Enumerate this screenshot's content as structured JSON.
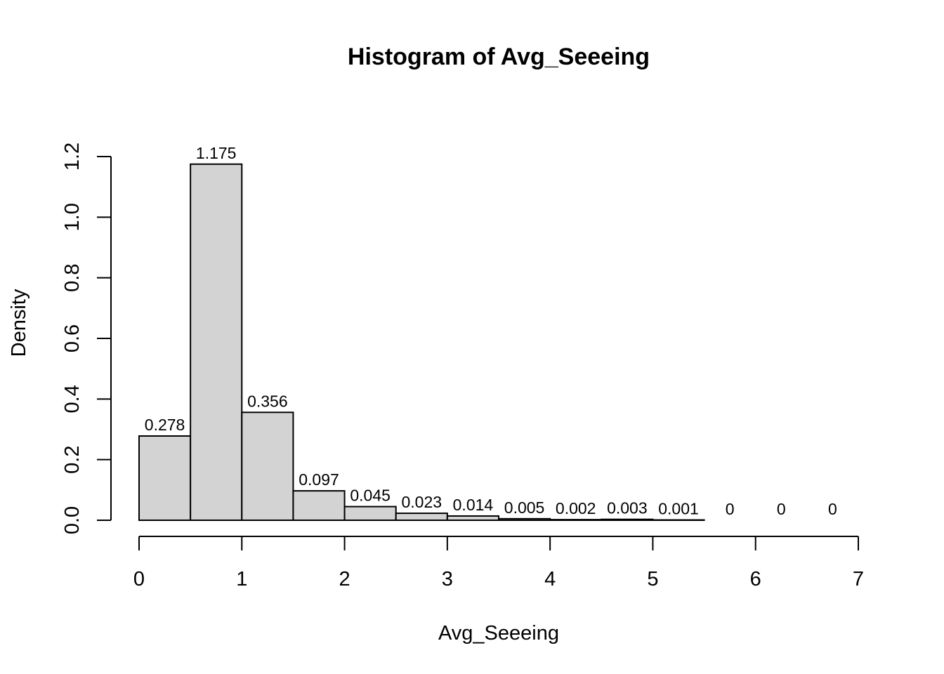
{
  "chart_data": {
    "type": "bar",
    "title": "Histogram of Avg_Seeeing",
    "xlabel": "Avg_Seeeing",
    "ylabel": "Density",
    "bin_edges": [
      0,
      0.5,
      1,
      1.5,
      2,
      2.5,
      3,
      3.5,
      4,
      4.5,
      5,
      5.5,
      6,
      6.5,
      7
    ],
    "values": [
      0.278,
      1.175,
      0.356,
      0.097,
      0.045,
      0.023,
      0.014,
      0.005,
      0.002,
      0.003,
      0.001,
      0,
      0,
      0
    ],
    "value_labels": [
      "0.278",
      "1.175",
      "0.356",
      "0.097",
      "0.045",
      "0.023",
      "0.014",
      "0.005",
      "0.002",
      "0.003",
      "0.001",
      "0",
      "0",
      "0"
    ],
    "xlim": [
      0,
      7
    ],
    "ylim": [
      0,
      1.2
    ],
    "x_ticks": [
      0,
      1,
      2,
      3,
      4,
      5,
      6,
      7
    ],
    "x_tick_labels": [
      "0",
      "1",
      "2",
      "3",
      "4",
      "5",
      "6",
      "7"
    ],
    "y_ticks": [
      0,
      0.2,
      0.4,
      0.6,
      0.8,
      1.0,
      1.2
    ],
    "y_tick_labels": [
      "0.0",
      "0.2",
      "0.4",
      "0.6",
      "0.8",
      "1.0",
      "1.2"
    ],
    "grid": false,
    "bar_color": "#d3d3d3",
    "bar_border_color": "#000000"
  }
}
